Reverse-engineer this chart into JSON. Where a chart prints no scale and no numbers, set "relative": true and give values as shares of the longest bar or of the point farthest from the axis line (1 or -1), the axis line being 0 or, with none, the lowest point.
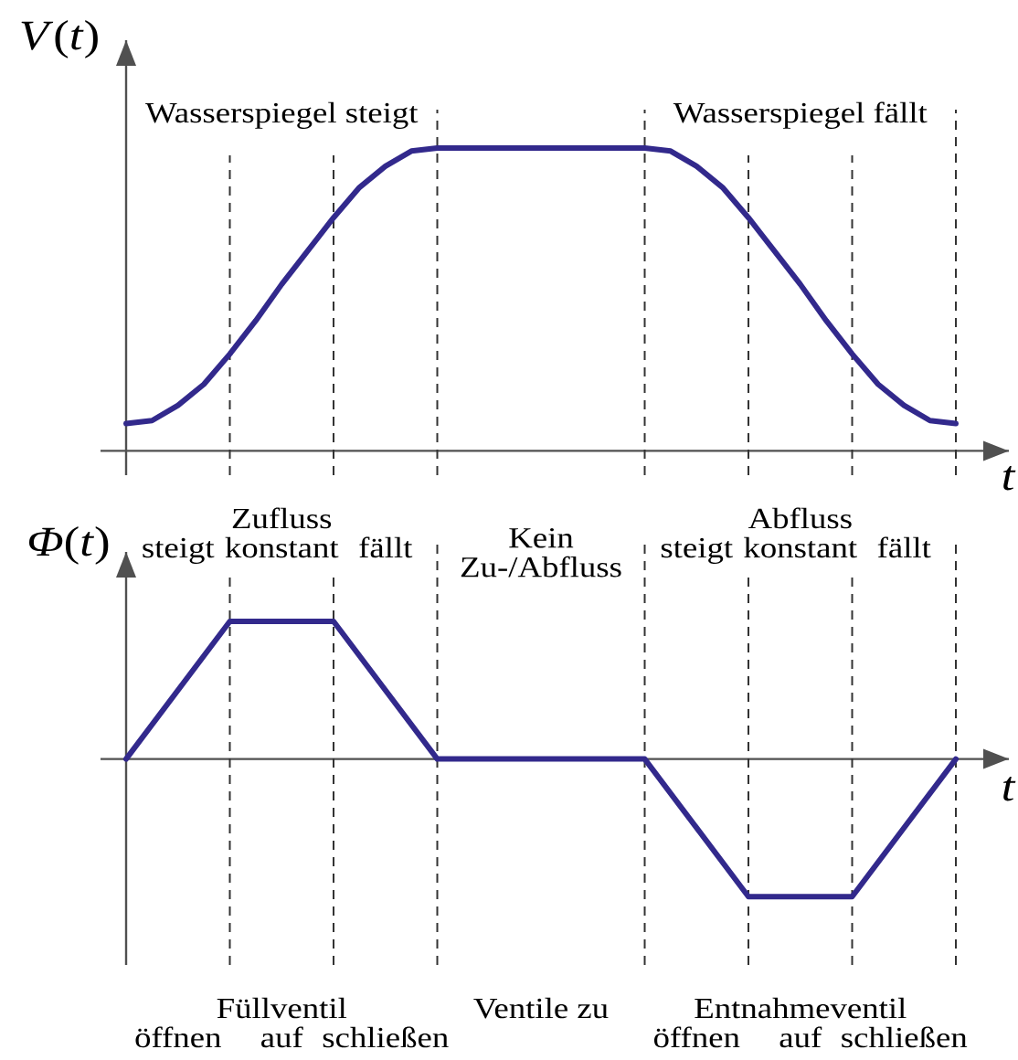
{
  "chart_data": [
    {
      "type": "line",
      "ylabel": "*V*(*t*)",
      "xlabel": "t",
      "relative": true,
      "grid": "x",
      "categories": [
        null,
        null,
        null,
        null,
        null,
        null,
        null,
        null,
        null,
        null,
        null,
        null,
        null,
        null,
        null,
        null,
        null,
        null,
        null,
        null,
        null,
        null,
        null,
        null,
        null,
        null,
        null,
        null,
        null,
        null,
        null,
        null,
        null
      ],
      "series": [
        {
          "color": "#32298c",
          "values": [
            0.09,
            0.1,
            0.15,
            0.22,
            0.32,
            0.43,
            0.55,
            0.66,
            0.77,
            0.87,
            0.94,
            0.99,
            1,
            1,
            1,
            1,
            1,
            1,
            1,
            1,
            1,
            0.99,
            0.94,
            0.87,
            0.77,
            0.66,
            0.55,
            0.43,
            0.32,
            0.22,
            0.15,
            0.1,
            0.09
          ]
        }
      ],
      "annotations": [
        "Wasserspiegel steigt",
        "Wasserspiegel fällt"
      ]
    },
    {
      "type": "line",
      "ylabel": "*Φ*(*t*)",
      "xlabel": "t",
      "relative": true,
      "grid": "x",
      "categories": [
        null,
        null,
        null,
        null,
        null,
        null,
        null,
        null,
        null
      ],
      "series": [
        {
          "color": "#32298c",
          "values": [
            0,
            1,
            1,
            0,
            0,
            0,
            -1,
            -1,
            0
          ]
        }
      ],
      "annotations": [
        "Zufluss",
        "steigt",
        "konstant",
        "fällt",
        "Kein Zu-/Abfluss",
        "Abfluss",
        "steigt",
        "konstant",
        "fällt",
        "Füllventil",
        "öffnen",
        "auf",
        "schließen",
        "Ventile zu",
        "Entnahmeventil",
        "öffnen",
        "auf",
        "schließen"
      ]
    }
  ]
}
